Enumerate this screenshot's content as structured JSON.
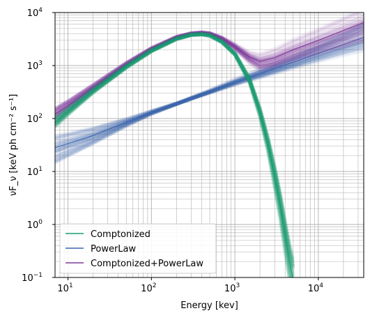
{
  "chart_data": {
    "type": "line",
    "title": "",
    "xlabel": "Energy [kev]",
    "ylabel": "νF_ν [keV ph cm⁻² s⁻¹]",
    "xscale": "log",
    "yscale": "log",
    "xlim": [
      7,
      35000
    ],
    "ylim": [
      0.1,
      10000
    ],
    "grid": true,
    "grid_minor": true,
    "legend_position": "lower-left",
    "x_ticks": [
      {
        "value": 10,
        "base": "10",
        "exp": "1"
      },
      {
        "value": 100,
        "base": "10",
        "exp": "2"
      },
      {
        "value": 1000,
        "base": "10",
        "exp": "3"
      },
      {
        "value": 10000,
        "base": "10",
        "exp": "4"
      }
    ],
    "y_ticks": [
      {
        "value": 0.1,
        "base": "10",
        "exp": "−1"
      },
      {
        "value": 1,
        "base": "10",
        "exp": "0"
      },
      {
        "value": 10,
        "base": "10",
        "exp": "1"
      },
      {
        "value": 100,
        "base": "10",
        "exp": "2"
      },
      {
        "value": 1000,
        "base": "10",
        "exp": "3"
      },
      {
        "value": 10000,
        "base": "10",
        "exp": "4"
      }
    ],
    "series": [
      {
        "name": "Comptonized",
        "color": "#1a9e77",
        "x": [
          7,
          10,
          20,
          50,
          100,
          200,
          300,
          400,
          500,
          700,
          1000,
          1500,
          2000,
          2500,
          3000,
          3500,
          4000,
          4500,
          5000
        ],
        "y": [
          85,
          135,
          330,
          950,
          1900,
          3200,
          3800,
          3900,
          3700,
          2800,
          1650,
          520,
          130,
          32,
          8,
          2.2,
          0.6,
          0.2,
          0.09
        ],
        "spread_lower": [
          0.8,
          0.85,
          0.9,
          0.93,
          0.95,
          0.96,
          0.96,
          0.96,
          0.95,
          0.95,
          0.93,
          0.85,
          0.75,
          0.65,
          0.55,
          0.5,
          0.45,
          0.42,
          0.4
        ],
        "spread_upper": [
          1.25,
          1.2,
          1.12,
          1.08,
          1.06,
          1.05,
          1.04,
          1.04,
          1.05,
          1.06,
          1.08,
          1.15,
          1.3,
          1.5,
          1.8,
          2.0,
          2.2,
          2.4,
          2.5
        ]
      },
      {
        "name": "PowerLaw",
        "color": "#3a66b0",
        "x": [
          7,
          20,
          50,
          100,
          200,
          300,
          500,
          1000,
          2000,
          5000,
          10000,
          20000,
          35000
        ],
        "y": [
          28,
          48,
          85,
          130,
          190,
          240,
          320,
          480,
          700,
          1150,
          1700,
          2500,
          3400
        ],
        "spread_lower": [
          0.5,
          0.65,
          0.8,
          0.9,
          0.96,
          0.95,
          0.92,
          0.85,
          0.78,
          0.7,
          0.63,
          0.57,
          0.52
        ],
        "spread_upper": [
          1.7,
          1.45,
          1.2,
          1.1,
          1.04,
          1.06,
          1.1,
          1.2,
          1.3,
          1.45,
          1.6,
          1.75,
          1.9
        ]
      },
      {
        "name": "Comptonized+PowerLaw",
        "color": "#7b3c97",
        "x": [
          7,
          10,
          20,
          50,
          100,
          200,
          300,
          400,
          500,
          700,
          1000,
          1500,
          2000,
          3000,
          5000,
          10000,
          20000,
          35000
        ],
        "y": [
          120,
          175,
          380,
          1050,
          2050,
          3400,
          4000,
          4150,
          4000,
          3250,
          2300,
          1450,
          1200,
          1400,
          2000,
          3000,
          4600,
          6500
        ],
        "spread_lower": [
          0.8,
          0.82,
          0.88,
          0.92,
          0.94,
          0.95,
          0.95,
          0.95,
          0.94,
          0.92,
          0.85,
          0.72,
          0.62,
          0.6,
          0.55,
          0.5,
          0.45,
          0.42
        ],
        "spread_upper": [
          1.35,
          1.3,
          1.2,
          1.12,
          1.08,
          1.06,
          1.05,
          1.05,
          1.06,
          1.08,
          1.15,
          1.3,
          1.5,
          1.6,
          1.7,
          1.8,
          1.9,
          2.0
        ]
      }
    ]
  }
}
